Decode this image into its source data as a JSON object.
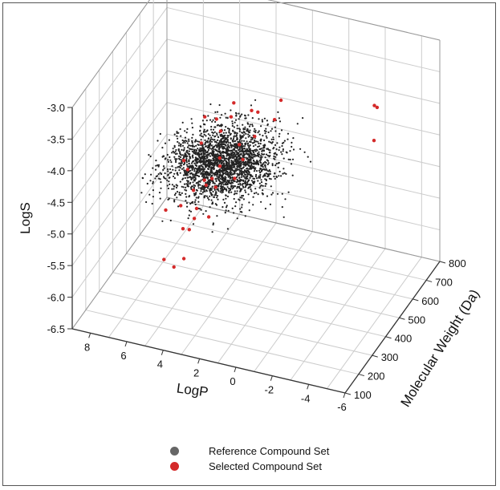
{
  "chart_data": {
    "type": "scatter",
    "dimensions": 3,
    "title": "",
    "xlabel": "Molecular Weight (Da)",
    "ylabel": "LogP",
    "zlabel": "LogS",
    "xlim": [
      100,
      800
    ],
    "ylim": [
      9,
      -6
    ],
    "zlim": [
      -6.5,
      -3.0
    ],
    "x_ticks": [
      "100",
      "200",
      "300",
      "400",
      "500",
      "600",
      "700",
      "800"
    ],
    "y_ticks": [
      "8",
      "6",
      "4",
      "2",
      "0",
      "-2",
      "-4",
      "-6"
    ],
    "z_ticks": [
      "-3.0",
      "-3.5",
      "-4.0",
      "-4.5",
      "-5.0",
      "-5.5",
      "-6.0",
      "-6.5"
    ],
    "grid": true,
    "legend_position": "bottom-center",
    "series": [
      {
        "name": "Reference Compound Set",
        "color": "#222222",
        "legend_color": "#666666",
        "distribution": {
          "count": 2400,
          "mw_mean": 380,
          "mw_sd": 95,
          "logp_mean": 2.8,
          "logp_sd": 1.3,
          "logs_intercept": -2.75,
          "logs_per_100da": -0.32,
          "logs_per_logp": -0.12,
          "logs_noise_sd": 0.3
        }
      },
      {
        "name": "Selected Compound Set",
        "color": "#d42a2a",
        "legend_color": "#d42a2a",
        "points": [
          {
            "x": 690,
            "y": -3.2,
            "z": -4.45
          },
          {
            "x": 720,
            "y": -3.0,
            "z": -4.0
          },
          {
            "x": 700,
            "y": -3.3,
            "z": -3.95
          },
          {
            "x": 260,
            "y": 4.6,
            "z": -5.7
          },
          {
            "x": 240,
            "y": 5.0,
            "z": -5.55
          },
          {
            "x": 280,
            "y": 4.2,
            "z": -5.6
          },
          {
            "x": 300,
            "y": 4.4,
            "z": -5.2
          },
          {
            "x": 330,
            "y": 4.0,
            "z": -5.1
          },
          {
            "x": 320,
            "y": 3.8,
            "z": -4.9
          },
          {
            "x": 280,
            "y": 5.2,
            "z": -4.9
          },
          {
            "x": 380,
            "y": 3.2,
            "z": -4.7
          },
          {
            "x": 350,
            "y": 3.5,
            "z": -4.6
          },
          {
            "x": 300,
            "y": 2.8,
            "z": -4.3
          },
          {
            "x": 270,
            "y": 3.0,
            "z": -4.25
          },
          {
            "x": 420,
            "y": 2.0,
            "z": -4.3
          },
          {
            "x": 250,
            "y": 2.0,
            "z": -3.9
          },
          {
            "x": 340,
            "y": 1.6,
            "z": -3.8
          },
          {
            "x": 400,
            "y": 2.5,
            "z": -3.6
          },
          {
            "x": 360,
            "y": 3.0,
            "z": -3.55
          },
          {
            "x": 450,
            "y": 1.4,
            "z": -3.6
          },
          {
            "x": 500,
            "y": 0.5,
            "z": -3.5
          },
          {
            "x": 300,
            "y": 3.2,
            "z": -3.35
          },
          {
            "x": 380,
            "y": 2.2,
            "z": -3.3
          },
          {
            "x": 280,
            "y": 4.2,
            "z": -4.05
          },
          {
            "x": 330,
            "y": 2.6,
            "z": -4.05
          },
          {
            "x": 440,
            "y": 2.6,
            "z": -4.7
          },
          {
            "x": 200,
            "y": 3.4,
            "z": -3.9
          },
          {
            "x": 230,
            "y": 4.0,
            "z": -4.6
          },
          {
            "x": 410,
            "y": 3.8,
            "z": -5.3
          },
          {
            "x": 360,
            "y": 4.5,
            "z": -5.4
          },
          {
            "x": 480,
            "y": 1.8,
            "z": -4.1
          },
          {
            "x": 520,
            "y": 1.0,
            "z": -3.9
          },
          {
            "x": 310,
            "y": 2.4,
            "z": -3.55
          },
          {
            "x": 270,
            "y": 3.6,
            "z": -4.45
          },
          {
            "x": 350,
            "y": 1.0,
            "z": -3.25
          },
          {
            "x": 220,
            "y": 2.8,
            "z": -3.5
          }
        ]
      }
    ]
  }
}
